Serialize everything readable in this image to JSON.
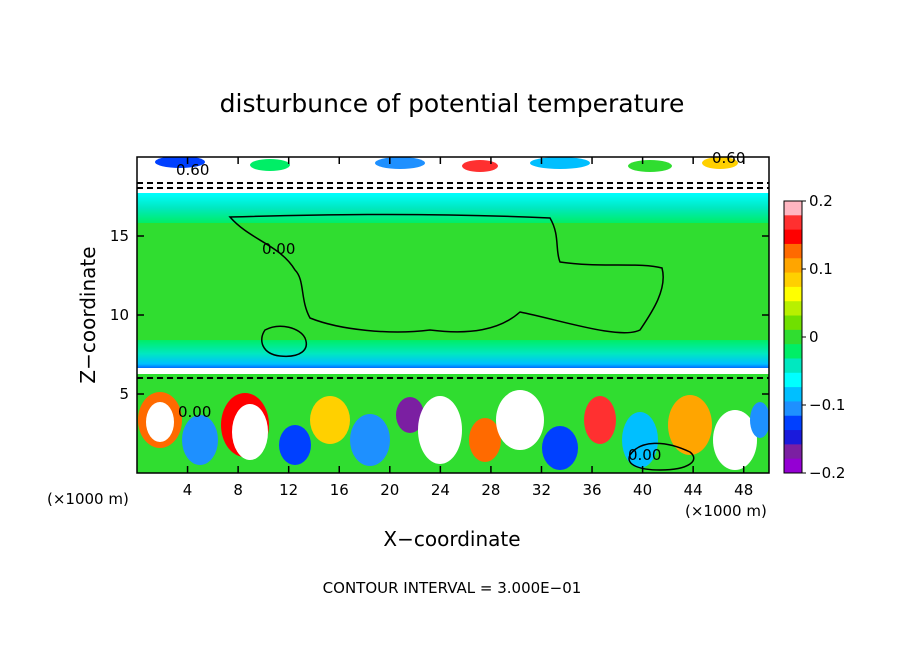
{
  "chart_data": {
    "type": "heatmap",
    "title": "disturbunce of potential temperature",
    "xlabel": "X−coordinate",
    "ylabel": "Z−coordinate",
    "x_unit": "(×1000 m)",
    "z_unit": "(×1000 m)",
    "xlim": [
      0,
      50
    ],
    "ylim": [
      0,
      20
    ],
    "x_ticks": [
      4,
      8,
      12,
      16,
      20,
      24,
      28,
      32,
      36,
      40,
      44,
      48
    ],
    "y_ticks": [
      5,
      10,
      15
    ],
    "contour_interval_label": "CONTOUR INTERVAL = 3.000E−01",
    "contour_labels": [
      "0.60",
      "0.00",
      "0.00",
      "0.00",
      "0.60"
    ],
    "colorbar": {
      "vmin": -0.2,
      "vmax": 0.2,
      "tick_values": [
        0.2,
        0.1,
        0,
        -0.1,
        -0.2
      ],
      "tick_labels": [
        "0.2",
        "0.1",
        "0",
        "−0.1",
        "−0.2"
      ],
      "colors": [
        "#ffb6c1",
        "#ff3030",
        "#ff0000",
        "#ff6a00",
        "#ffa500",
        "#ffd000",
        "#ffff00",
        "#b8f000",
        "#70e000",
        "#30dd30",
        "#00ee66",
        "#00e8c0",
        "#00ffff",
        "#00bfff",
        "#1e90ff",
        "#0040ff",
        "#1a1adc",
        "#7b1fa2",
        "#9400d3"
      ]
    }
  }
}
